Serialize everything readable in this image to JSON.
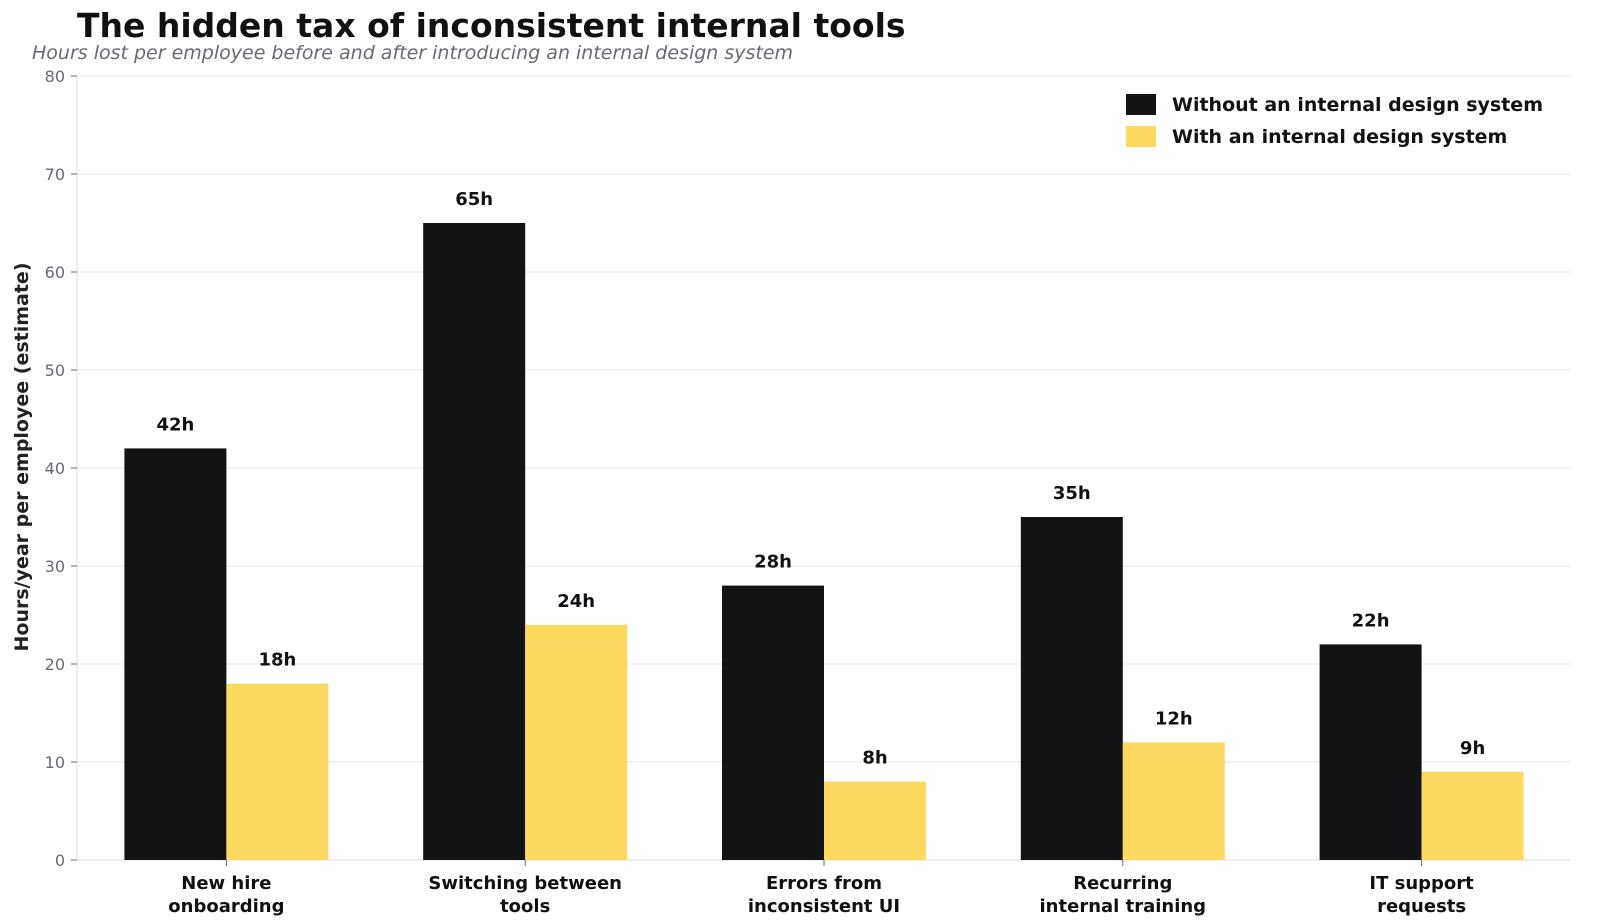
{
  "title": "The hidden tax of inconsistent internal tools",
  "subtitle": "Hours lost per employee before and after introducing an internal design system",
  "chart_data": {
    "type": "bar",
    "categories": [
      [
        "New hire",
        "onboarding"
      ],
      [
        "Switching between",
        "tools"
      ],
      [
        "Errors from",
        "inconsistent UI"
      ],
      [
        "Recurring",
        "internal training"
      ],
      [
        "IT support",
        "requests"
      ]
    ],
    "series": [
      {
        "name": "Without an internal design system",
        "color": "#121314",
        "values": [
          42,
          65,
          28,
          35,
          22
        ],
        "labels": [
          "42h",
          "65h",
          "28h",
          "35h",
          "22h"
        ]
      },
      {
        "name": "With an internal design system",
        "color": "#fdd95f",
        "values": [
          18,
          24,
          8,
          12,
          9
        ],
        "labels": [
          "18h",
          "24h",
          "8h",
          "12h",
          "9h"
        ]
      }
    ],
    "xlabel": "",
    "ylabel": "Hours/year per employee (estimate)",
    "ylim": [
      0,
      80
    ],
    "yticks": [
      0,
      10,
      20,
      30,
      40,
      50,
      60,
      70,
      80
    ],
    "grid": true,
    "legend_position": "top-right"
  }
}
